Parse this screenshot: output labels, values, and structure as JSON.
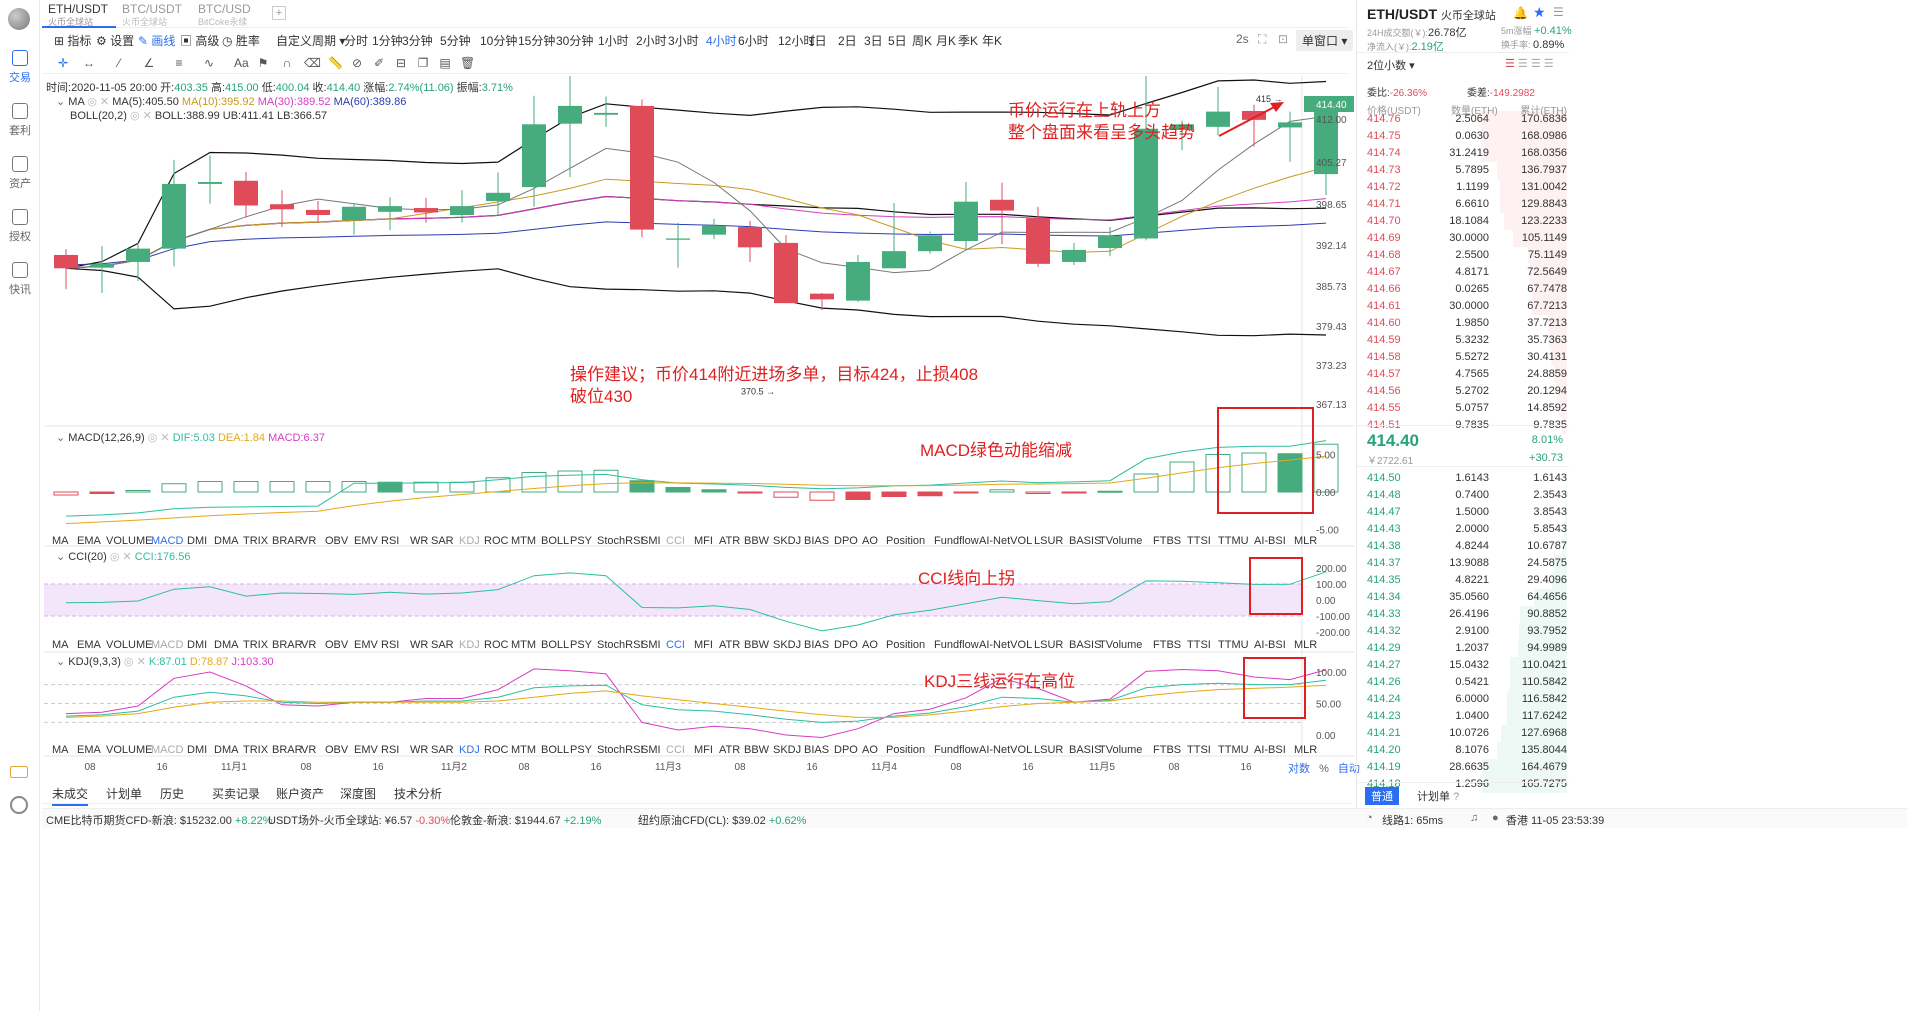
{
  "pair_tabs": [
    {
      "pair": "ETH/USDT",
      "sub": "火币全球站"
    },
    {
      "pair": "BTC/USDT",
      "sub": "火币全球站"
    },
    {
      "pair": "BTC/USD",
      "sub": "BitCoke永续"
    }
  ],
  "add_tab": "+",
  "sidebar": [
    {
      "label": "交易"
    },
    {
      "label": "套利"
    },
    {
      "label": "资产"
    },
    {
      "label": "授权"
    },
    {
      "label": "快讯"
    }
  ],
  "toolbar": {
    "indicator": "指标",
    "settings": "设置",
    "draw": "画线",
    "advanced": "高级",
    "win_rate": "胜率",
    "custom_period": "自定义周期",
    "periods": [
      "分时",
      "1分钟",
      "3分钟",
      "5分钟",
      "10分钟",
      "15分钟",
      "30分钟",
      "1小时",
      "2小时",
      "3小时",
      "4小时",
      "6小时",
      "12小时",
      "1日",
      "2日",
      "3日",
      "5日",
      "周K",
      "月K",
      "季K",
      "年K"
    ],
    "active_period": "4小时",
    "interval": "2s",
    "window_mode": "单窗口"
  },
  "ohlc": {
    "time_label": "时间:",
    "time": "2020-11-05 20:00",
    "open_label": "开:",
    "open": "403.35",
    "high_label": "高:",
    "high": "415.00",
    "low_label": "低:",
    "low": "400.04",
    "close_label": "收:",
    "close": "414.40",
    "change_label": "涨幅:",
    "change": "2.74%(11.06)",
    "amp_label": "振幅:",
    "amp": "3.71%"
  },
  "ma_legend": {
    "name": "MA",
    "ma5": "MA(5):405.50",
    "ma10": "MA(10):395.92",
    "ma30": "MA(30):389.52",
    "ma60": "MA(60):389.86"
  },
  "boll_legend": {
    "name": "BOLL(20,2)",
    "mid": "BOLL:388.99",
    "ub": "UB:411.41",
    "lb": "LB:366.57"
  },
  "price_axis": [
    "412.00",
    "405.27",
    "398.65",
    "392.14",
    "385.73",
    "379.43",
    "373.23",
    "367.13"
  ],
  "current_price_tag": "414.40",
  "high_marker": "415",
  "low_marker": "370.5",
  "macd_legend": {
    "name": "MACD(12,26,9)",
    "dif": "DIF:5.03",
    "dea": "DEA:1.84",
    "macd": "MACD:6.37"
  },
  "macd_axis": [
    "5.00",
    "0.00",
    "-5.00"
  ],
  "cci_legend": {
    "name": "CCI(20)",
    "cci": "CCI:176.56"
  },
  "cci_axis": [
    "200.00",
    "100.00",
    "0.00",
    "-100.00",
    "-200.00"
  ],
  "kdj_legend": {
    "name": "KDJ(9,3,3)",
    "k": "K:87.01",
    "d": "D:78.87",
    "j": "J:103.30"
  },
  "kdj_axis": [
    "100.00",
    "50.00",
    "0.00"
  ],
  "indicator_list": [
    "MA",
    "EMA",
    "VOLUME",
    "MACD",
    "DMI",
    "DMA",
    "TRIX",
    "BRAR",
    "VR",
    "OBV",
    "EMV",
    "RSI",
    "WR",
    "SAR",
    "KDJ",
    "ROC",
    "MTM",
    "BOLL",
    "PSY",
    "StochRSI",
    "SMI",
    "CCI",
    "MFI",
    "ATR",
    "BBW",
    "SKDJ",
    "BIAS",
    "DPO",
    "AO",
    "Position",
    "Fundflow",
    "AI-NetVOL",
    "LSUR",
    "BASIS",
    "TVolume",
    "FTBS",
    "TTSI",
    "TTMU",
    "AI-BSI",
    "MLR"
  ],
  "time_axis": [
    "08",
    "16",
    "11月1",
    "08",
    "16",
    "11月2",
    "08",
    "16",
    "11月3",
    "08",
    "16",
    "11月4",
    "08",
    "16",
    "11月5",
    "08",
    "16"
  ],
  "axis_opts": {
    "log": "对数",
    "pct": "%",
    "auto": "自动"
  },
  "annotations": {
    "a1": "币价运行在上轨上方",
    "a2": "整个盘面来看呈多头趋势",
    "a3": "操作建议；币价414附近进场多单，目标424，止损408",
    "a4": "破位430",
    "a5": "MACD绿色动能缩减",
    "a6": "CCI线向上拐",
    "a7": "KDJ三线运行在高位"
  },
  "bottom_tabs": [
    "未成交",
    "计划单",
    "历史",
    "买卖记录",
    "账户资产",
    "深度图",
    "技术分析"
  ],
  "status": [
    {
      "name": "CME比特币期货CFD-新浪:",
      "price": "$15232.00",
      "chg": "+8.22%"
    },
    {
      "name": "USDT场外-火币全球站:",
      "price": "¥6.57",
      "chg": "-0.30%"
    },
    {
      "name": "伦敦金-新浪:",
      "price": "$1944.67",
      "chg": "+2.19%"
    },
    {
      "name": "纽约原油CFD(CL):",
      "price": "$39.02",
      "chg": "+0.62%"
    }
  ],
  "status_right": {
    "line": "线路1: 65ms",
    "clock": "香港 11-05 23:53:39"
  },
  "right_header": {
    "pair": "ETH/USDT",
    "exchange": "火币全球站",
    "vol_label": "24H成交额(￥):",
    "vol": "26.78亿",
    "chg_label": "5m涨幅",
    "chg": "+0.41%",
    "inflow_label": "净流入(￥):",
    "inflow": "2.19亿",
    "turnover_label": "换手率:",
    "turnover": "0.89%"
  },
  "orderbook": {
    "precision": "2位小数",
    "ratio_label": "委比:",
    "ratio": "-26.36%",
    "diff_label": "委差:",
    "diff": "-149.2982",
    "col_price": "价格(USDT)",
    "col_amount": "数量(ETH)",
    "col_total": "累计(ETH)",
    "asks": [
      [
        "414.76",
        "2.5064",
        "170.6836"
      ],
      [
        "414.75",
        "0.0630",
        "168.0986"
      ],
      [
        "414.74",
        "31.2419",
        "168.0356"
      ],
      [
        "414.73",
        "5.7895",
        "136.7937"
      ],
      [
        "414.72",
        "1.1199",
        "131.0042"
      ],
      [
        "414.71",
        "6.6610",
        "129.8843"
      ],
      [
        "414.70",
        "18.1084",
        "123.2233"
      ],
      [
        "414.69",
        "30.0000",
        "105.1149"
      ],
      [
        "414.68",
        "2.5500",
        "75.1149"
      ],
      [
        "414.67",
        "4.8171",
        "72.5649"
      ],
      [
        "414.66",
        "0.0265",
        "67.7478"
      ],
      [
        "414.61",
        "30.0000",
        "67.7213"
      ],
      [
        "414.60",
        "1.9850",
        "37.7213"
      ],
      [
        "414.59",
        "5.3232",
        "35.7363"
      ],
      [
        "414.58",
        "5.5272",
        "30.4131"
      ],
      [
        "414.57",
        "4.7565",
        "24.8859"
      ],
      [
        "414.56",
        "5.2702",
        "20.1294"
      ],
      [
        "414.55",
        "5.0757",
        "14.8592"
      ],
      [
        "414.51",
        "9.7835",
        "9.7835"
      ]
    ],
    "last_price": "414.40",
    "last_pct": "8.01%",
    "last_cny": "￥2722.61",
    "last_chg": "+30.73",
    "bids": [
      [
        "414.50",
        "1.6143",
        "1.6143"
      ],
      [
        "414.48",
        "0.7400",
        "2.3543"
      ],
      [
        "414.47",
        "1.5000",
        "3.8543"
      ],
      [
        "414.43",
        "2.0000",
        "5.8543"
      ],
      [
        "414.38",
        "4.8244",
        "10.6787"
      ],
      [
        "414.37",
        "13.9088",
        "24.5875"
      ],
      [
        "414.35",
        "4.8221",
        "29.4096"
      ],
      [
        "414.34",
        "35.0560",
        "64.4656"
      ],
      [
        "414.33",
        "26.4196",
        "90.8852"
      ],
      [
        "414.32",
        "2.9100",
        "93.7952"
      ],
      [
        "414.29",
        "1.2037",
        "94.9989"
      ],
      [
        "414.27",
        "15.0432",
        "110.0421"
      ],
      [
        "414.26",
        "0.5421",
        "110.5842"
      ],
      [
        "414.24",
        "6.0000",
        "116.5842"
      ],
      [
        "414.23",
        "1.0400",
        "117.6242"
      ],
      [
        "414.21",
        "10.0726",
        "127.6968"
      ],
      [
        "414.20",
        "8.1076",
        "135.8044"
      ],
      [
        "414.19",
        "28.6635",
        "164.4679"
      ],
      [
        "414.18",
        "1.2596",
        "165.7275"
      ]
    ],
    "bottom_tab_normal": "普通",
    "bottom_tab_plan": "计划单"
  },
  "chart_data": {
    "type": "candlestick",
    "interval": "4小时",
    "candles": [
      [
        390.6,
        388.5,
        391.5,
        385.2
      ],
      [
        388.6,
        389.2,
        392.0,
        384.6
      ],
      [
        389.5,
        391.6,
        392.5,
        386.5
      ],
      [
        391.6,
        401.8,
        405.6,
        388.8
      ],
      [
        401.8,
        402.1,
        406.3,
        398.7
      ],
      [
        402.3,
        398.4,
        403.7,
        396.5
      ],
      [
        398.6,
        397.8,
        400.8,
        395.0
      ],
      [
        397.7,
        396.9,
        399.1,
        395.7
      ],
      [
        396.1,
        398.2,
        398.7,
        393.8
      ],
      [
        397.4,
        398.3,
        399.7,
        394.5
      ],
      [
        398.0,
        397.3,
        399.6,
        395.7
      ],
      [
        396.9,
        398.3,
        400.8,
        395.7
      ],
      [
        399.1,
        400.4,
        403.6,
        397.0
      ],
      [
        401.3,
        411.2,
        415.7,
        398.2
      ],
      [
        411.3,
        414.1,
        421.2,
        402.9
      ],
      [
        412.7,
        413.0,
        415.6,
        410.8
      ],
      [
        414.1,
        394.6,
        415.1,
        393.4
      ],
      [
        393.0,
        393.2,
        395.7,
        388.6
      ],
      [
        393.8,
        395.2,
        396.3,
        393.1
      ],
      [
        395.0,
        391.8,
        396.0,
        389.5
      ],
      [
        392.5,
        383.0,
        393.7,
        383.0
      ],
      [
        384.5,
        383.6,
        384.6,
        381.9
      ],
      [
        383.4,
        389.5,
        390.6,
        383.2
      ],
      [
        388.5,
        391.2,
        398.8,
        388.5
      ],
      [
        391.2,
        393.7,
        394.3,
        390.8
      ],
      [
        392.8,
        399.0,
        402.1,
        391.3
      ],
      [
        399.3,
        397.6,
        402.0,
        392.3
      ],
      [
        396.4,
        389.2,
        398.2,
        388.7
      ],
      [
        389.5,
        391.4,
        392.5,
        389.0
      ],
      [
        391.7,
        393.6,
        395.0,
        390.4
      ],
      [
        393.2,
        410.5,
        420.6,
        392.9
      ],
      [
        410.3,
        411.2,
        411.8,
        407.1
      ],
      [
        410.8,
        413.2,
        417.1,
        409.5
      ],
      [
        413.3,
        411.9,
        414.3,
        407.7
      ],
      [
        410.7,
        411.5,
        413.2,
        405.3
      ],
      [
        403.35,
        414.4,
        415.0,
        400.04
      ]
    ],
    "macd_hist": [
      -0.4,
      -0.2,
      0.2,
      1.1,
      1.4,
      1.4,
      1.4,
      1.4,
      1.4,
      1.3,
      1.3,
      1.3,
      1.9,
      2.6,
      2.8,
      2.9,
      1.5,
      0.6,
      0.3,
      -0.1,
      -0.7,
      -1.1,
      -1.0,
      -0.6,
      -0.5,
      -0.1,
      0.3,
      -0.2,
      -0.1,
      0.1,
      2.4,
      4.0,
      5.0,
      5.2,
      5.1,
      6.37
    ],
    "cci": [
      -17.6,
      -14.7,
      -6.2,
      67.3,
      82.7,
      24.5,
      43.8,
      40.4,
      34.8,
      48.9,
      36.6,
      43.8,
      64.9,
      151.9,
      169.1,
      151.9,
      -47.1,
      -49.2,
      -36.2,
      -59.3,
      -132.9,
      -193.3,
      -156.1,
      -93.2,
      -64.4,
      -23.8,
      17.7,
      -4.0,
      -24.0,
      -10.3,
      119.2,
      117.0,
      108.2,
      97.2,
      97.9,
      176.56
    ],
    "kdj_k": [
      30,
      32,
      38,
      60,
      68,
      62,
      52,
      50,
      52,
      52,
      54,
      54,
      60,
      75,
      78,
      79,
      48,
      40,
      38,
      32,
      25,
      20,
      22,
      30,
      35,
      45,
      60,
      58,
      52,
      55,
      75,
      80,
      82,
      80,
      80,
      87.01
    ],
    "kdj_d": [
      28,
      30,
      34,
      44,
      52,
      54,
      54,
      52,
      52,
      52,
      52,
      52,
      54,
      60,
      66,
      70,
      62,
      56,
      50,
      44,
      38,
      32,
      28,
      28,
      32,
      38,
      45,
      50,
      52,
      54,
      62,
      68,
      72,
      74,
      76,
      78.87
    ],
    "kdj_j": [
      34,
      36,
      46,
      90,
      100,
      78,
      48,
      46,
      52,
      52,
      58,
      58,
      72,
      105,
      102,
      97,
      20,
      8,
      14,
      10,
      0,
      -4,
      10,
      34,
      41,
      59,
      90,
      74,
      52,
      57,
      101,
      104,
      102,
      92,
      88,
      103.3
    ]
  }
}
